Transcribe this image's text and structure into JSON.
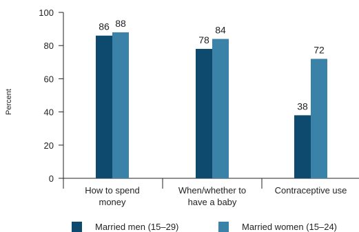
{
  "chart_data": {
    "type": "bar",
    "title": "",
    "xlabel": "",
    "ylabel": "Percent",
    "ylim": [
      0,
      100
    ],
    "yticks": [
      0,
      20,
      40,
      60,
      80,
      100
    ],
    "grid": false,
    "legend_position": "bottom",
    "categories": [
      [
        "How to spend",
        "money"
      ],
      [
        "When/whether to",
        "have a baby"
      ],
      [
        "Contraceptive use"
      ]
    ],
    "series": [
      {
        "name": "Married men (15–29)",
        "color": "#0e4a6e",
        "values": [
          86,
          78,
          38
        ]
      },
      {
        "name": "Married women (15–24)",
        "color": "#3b82a8",
        "values": [
          88,
          84,
          72
        ]
      }
    ]
  }
}
